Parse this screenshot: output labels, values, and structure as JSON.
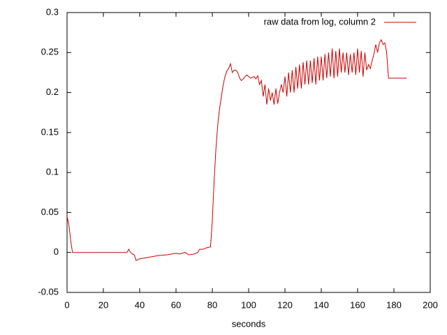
{
  "chart_data": {
    "type": "line",
    "xlabel": "seconds",
    "x": [
      0,
      1,
      2,
      3,
      4,
      33,
      34,
      35,
      36,
      37,
      38,
      39,
      40,
      45,
      50,
      55,
      60,
      62,
      65,
      67,
      70,
      72,
      73,
      75,
      77,
      79,
      80,
      81,
      82,
      83,
      84,
      85,
      86,
      87,
      88,
      89,
      90,
      91,
      92,
      93,
      94,
      95,
      96,
      97,
      98,
      99,
      100,
      101,
      102,
      103,
      104,
      105,
      106,
      107,
      108,
      109,
      110,
      111,
      112,
      113,
      114,
      115,
      116,
      117,
      118,
      119,
      120,
      121,
      122,
      123,
      124,
      125,
      126,
      127,
      128,
      129,
      130,
      131,
      132,
      133,
      134,
      135,
      136,
      137,
      138,
      139,
      140,
      141,
      142,
      143,
      144,
      145,
      146,
      147,
      148,
      149,
      150,
      151,
      152,
      153,
      154,
      155,
      156,
      157,
      158,
      159,
      160,
      161,
      162,
      163,
      164,
      165,
      166,
      167,
      168,
      169,
      170,
      171,
      172,
      173,
      174,
      175,
      176,
      177,
      187
    ],
    "series": [
      {
        "name": "raw data from log, column 2",
        "color": "#cc0000",
        "values": [
          0.045,
          0.035,
          0.015,
          0.0,
          0.0,
          0.0,
          0.004,
          0.0,
          -0.002,
          -0.003,
          -0.01,
          -0.009,
          -0.008,
          -0.006,
          -0.004,
          -0.003,
          -0.001,
          -0.002,
          0.0,
          -0.003,
          -0.002,
          0.0,
          0.004,
          0.004,
          0.006,
          0.007,
          0.04,
          0.09,
          0.13,
          0.16,
          0.18,
          0.195,
          0.21,
          0.22,
          0.227,
          0.23,
          0.236,
          0.225,
          0.228,
          0.228,
          0.225,
          0.218,
          0.215,
          0.217,
          0.22,
          0.222,
          0.22,
          0.218,
          0.219,
          0.22,
          0.217,
          0.221,
          0.21,
          0.215,
          0.195,
          0.21,
          0.185,
          0.205,
          0.19,
          0.2,
          0.185,
          0.205,
          0.186,
          0.2,
          0.21,
          0.2,
          0.22,
          0.195,
          0.225,
          0.2,
          0.228,
          0.2,
          0.232,
          0.205,
          0.235,
          0.205,
          0.238,
          0.21,
          0.24,
          0.21,
          0.24,
          0.212,
          0.243,
          0.21,
          0.245,
          0.215,
          0.245,
          0.215,
          0.248,
          0.218,
          0.25,
          0.22,
          0.255,
          0.218,
          0.252,
          0.22,
          0.255,
          0.225,
          0.25,
          0.225,
          0.25,
          0.222,
          0.248,
          0.225,
          0.25,
          0.222,
          0.255,
          0.225,
          0.252,
          0.22,
          0.25,
          0.228,
          0.235,
          0.23,
          0.24,
          0.248,
          0.26,
          0.25,
          0.262,
          0.266,
          0.26,
          0.262,
          0.25,
          0.218,
          0.218
        ]
      }
    ],
    "xlim": [
      0,
      200
    ],
    "xticks": [
      0,
      20,
      40,
      60,
      80,
      100,
      120,
      140,
      160,
      180,
      200
    ],
    "ylim": [
      -0.05,
      0.3
    ],
    "yticks": [
      -0.05,
      0,
      0.05,
      0.1,
      0.15,
      0.2,
      0.25,
      0.3
    ],
    "legend": "top-right"
  }
}
